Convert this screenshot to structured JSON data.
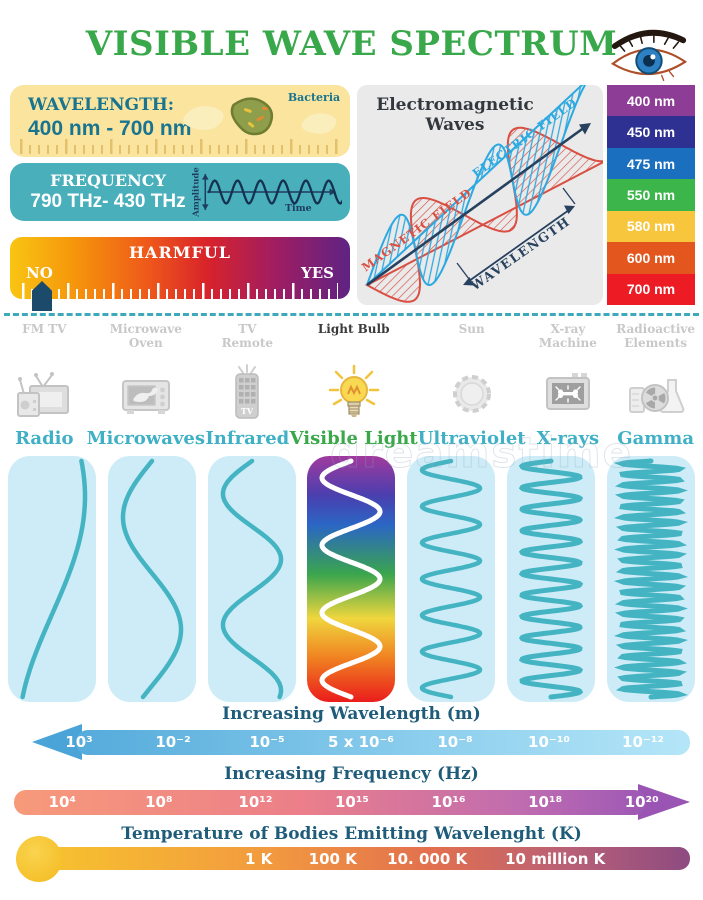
{
  "title": "VISIBLE WAVE SPECTRUM",
  "watermark": "dreamstime",
  "wavelength_box": {
    "label": "WAVELENGTH:",
    "value": "400 nm - 700 nm",
    "annotation": "Bacteria"
  },
  "frequency_box": {
    "label": "FREQUENCY",
    "value": "790 THz- 430 THz",
    "y_axis": "Amplitude",
    "x_axis": "Time"
  },
  "harmful_box": {
    "label": "HARMFUL",
    "left": "NO",
    "right": "YES"
  },
  "em_diagram": {
    "title_line1": "Electromagnetic",
    "title_line2": "Waves",
    "magnetic_label": "MAGNETIC FIELD",
    "electric_label": "ELECTRIC FIELD",
    "wavelength_label": "WAVELENGTH",
    "magnetic_color": "#d94f43",
    "electric_color": "#2da9e1",
    "axis_color": "#27415f"
  },
  "nm_scale": [
    {
      "label": "400 nm",
      "color": "#8e3d97"
    },
    {
      "label": "450 nm",
      "color": "#2e3192"
    },
    {
      "label": "475 nm",
      "color": "#1a70bf"
    },
    {
      "label": "550 nm",
      "color": "#3cb54a"
    },
    {
      "label": "580 nm",
      "color": "#f8c63d"
    },
    {
      "label": "600 nm",
      "color": "#e3571f"
    },
    {
      "label": "700 nm",
      "color": "#ed1c24"
    }
  ],
  "spectrum_columns": [
    {
      "source": "FM  TV",
      "name": "Radio",
      "icon": "radio-tv-icon",
      "cycles": 0.5
    },
    {
      "source": "Microwave Oven",
      "name": "Microwaves",
      "icon": "microwave-oven-icon",
      "cycles": 1.05
    },
    {
      "source": "TV Remote",
      "name": "Infrared",
      "icon": "tv-remote-icon",
      "cycles": 1.8
    },
    {
      "source": "Light Bulb",
      "name": "Visible Light",
      "icon": "light-bulb-icon",
      "cycles": 3.5
    },
    {
      "source": "Sun",
      "name": "Ultraviolet",
      "icon": "sun-icon",
      "cycles": 6.5
    },
    {
      "source": "X-ray Machine",
      "name": "X-rays",
      "icon": "x-ray-machine-icon",
      "cycles": 11
    },
    {
      "source": "Radioactive Elements",
      "name": "Gamma",
      "icon": "radioactive-elements-icon",
      "cycles": 22
    }
  ],
  "scales": {
    "wavelength": {
      "title": "Increasing Wavelength (m)",
      "values": [
        "10³",
        "10⁻²",
        "10⁻⁵",
        "5 x 10⁻⁶",
        "10⁻⁸",
        "10⁻¹⁰",
        "10⁻¹²"
      ]
    },
    "frequency": {
      "title": "Increasing Frequency (Hz)",
      "values": [
        "10⁴",
        "10⁸",
        "10¹²",
        "10¹⁵",
        "10¹⁶",
        "10¹⁸",
        "10²⁰"
      ]
    },
    "temperature": {
      "title": "Temperature of Bodies Emitting Wavelenght (K)",
      "values": [
        "1 K",
        "100 K",
        "10. 000 K",
        "10 million K"
      ]
    }
  }
}
